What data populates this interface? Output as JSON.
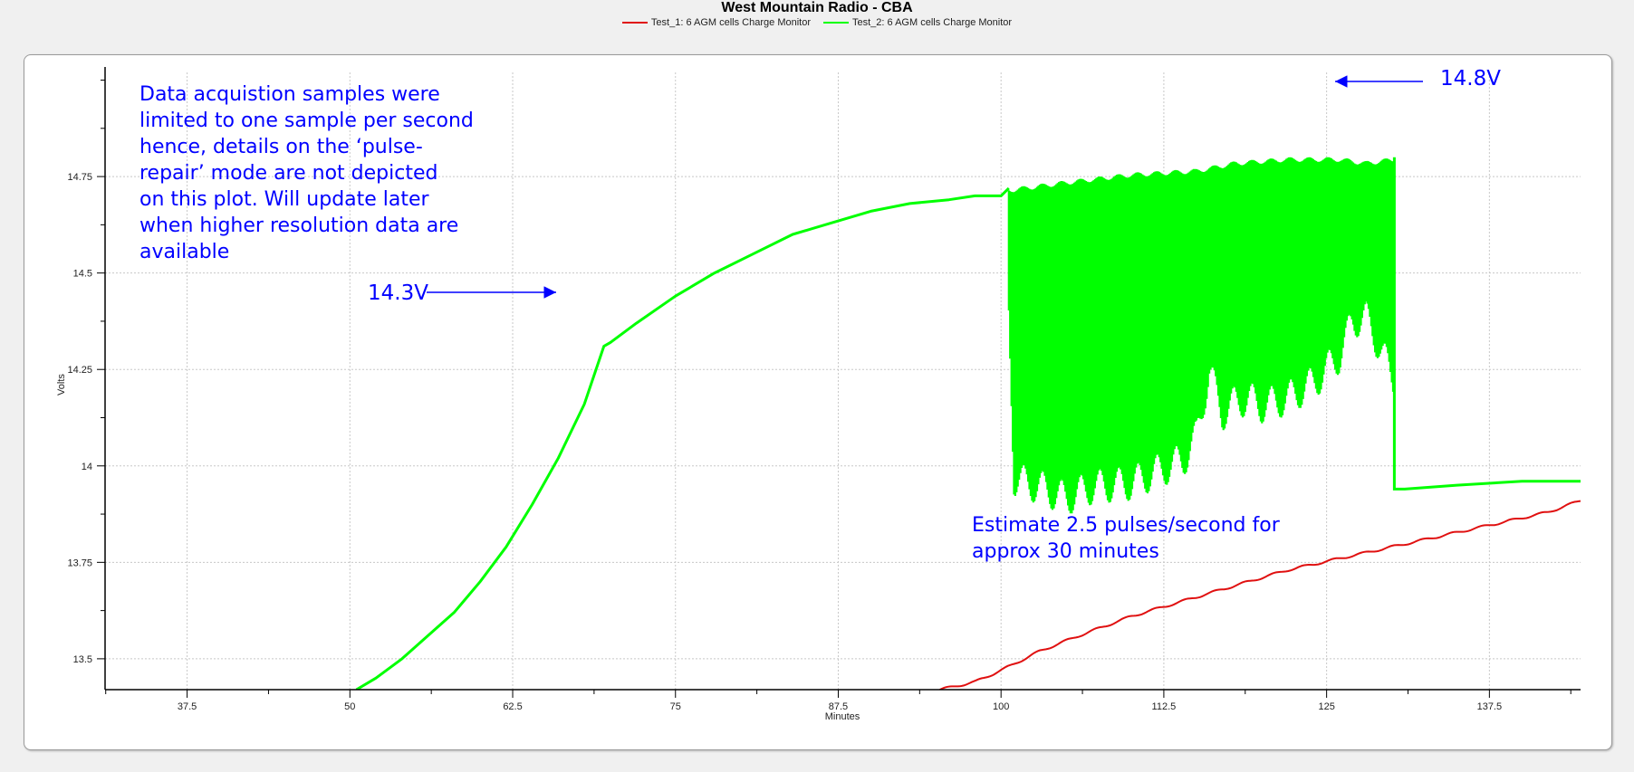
{
  "chart_data": {
    "type": "line",
    "title": "West Mountain Radio - CBA",
    "xlabel": "Minutes",
    "ylabel": "Volts",
    "xlim": [
      31.2,
      144.5
    ],
    "ylim": [
      13.42,
      15.02
    ],
    "xticks": [
      37.5,
      50,
      62.5,
      75,
      87.5,
      100,
      112.5,
      125,
      137.5
    ],
    "xtick_labels": [
      "37.5",
      "50",
      "62.5",
      "75",
      "87.5",
      "100",
      "112.5",
      "125",
      "137.5"
    ],
    "yticks": [
      13.5,
      13.75,
      14,
      14.25,
      14.5,
      14.75
    ],
    "ytick_labels": [
      "13.5",
      "13.75",
      "14",
      "14.25",
      "14.5",
      "14.75"
    ],
    "grid": true,
    "legend_position": "top-center",
    "series": [
      {
        "name": "Test_1: 6 AGM cells Charge Monitor",
        "color": "#e01010",
        "x": [
          95.3,
          98,
          100,
          103,
          106,
          110,
          114,
          118,
          122,
          126,
          130,
          134,
          138,
          142,
          144.5
        ],
        "y": [
          13.42,
          13.44,
          13.47,
          13.52,
          13.56,
          13.61,
          13.65,
          13.69,
          13.73,
          13.76,
          13.79,
          13.82,
          13.85,
          13.88,
          13.91
        ]
      },
      {
        "name": "Test_2: 6 AGM cells Charge Monitor",
        "color": "#00ff00",
        "x": [
          50.5,
          52,
          54,
          56,
          58,
          60,
          62,
          64,
          66,
          68,
          69.5,
          70,
          72,
          75,
          78,
          81,
          84,
          87,
          90,
          93,
          96,
          98,
          100,
          100.6
        ],
        "y": [
          13.42,
          13.45,
          13.5,
          13.56,
          13.62,
          13.7,
          13.79,
          13.9,
          14.02,
          14.16,
          14.31,
          14.32,
          14.37,
          14.44,
          14.5,
          14.55,
          14.6,
          14.63,
          14.66,
          14.68,
          14.69,
          14.7,
          14.7,
          14.72
        ],
        "pulse_region": {
          "x_range": [
            100.6,
            130.2
          ],
          "upper_envelope": {
            "x": [
              100.6,
              105,
              110,
              115,
              118,
              122,
              126,
              128,
              130.2
            ],
            "y": [
              14.72,
              14.74,
              14.76,
              14.77,
              14.79,
              14.8,
              14.8,
              14.79,
              14.8
            ]
          },
          "lower_envelope": {
            "x": [
              100.6,
              101,
              103,
              105,
              107,
              110,
              112,
              114,
              115,
              116,
              117,
              118,
              119,
              120,
              122,
              124,
              126,
              127,
              128,
              129,
              130.2
            ],
            "y": [
              14.35,
              13.92,
              13.9,
              13.87,
              13.9,
              13.91,
              13.94,
              13.97,
              14.03,
              14.2,
              14.09,
              14.12,
              14.13,
              14.11,
              14.13,
              14.17,
              14.24,
              14.33,
              14.34,
              14.27,
              14.17
            ]
          }
        },
        "after_pulse": {
          "x": [
            130.2,
            131,
            135,
            140,
            144.5
          ],
          "y": [
            13.94,
            13.94,
            13.95,
            13.96,
            13.96
          ]
        }
      }
    ],
    "annotations": [
      {
        "lines": [
          "Data acquistion samples were",
          "limited to one sample per second",
          "hence, details on the ‘pulse-",
          "repair’ mode are not depicted",
          "on this plot. Will update later",
          "when higher resolution data are",
          "available"
        ]
      },
      {
        "text": "14.3V",
        "x": 69.5,
        "y": 14.315
      },
      {
        "text": "14.8V",
        "x": 130.2,
        "y": 14.81
      },
      {
        "lines": [
          "Estimate 2.5 pulses/second for",
          "approx 30 minutes"
        ]
      }
    ]
  }
}
